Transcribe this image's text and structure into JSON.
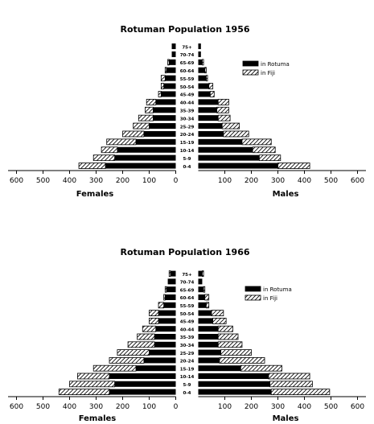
{
  "chart_data": [
    {
      "type": "bar",
      "title": "Rotuman Population 1956",
      "categories": [
        "0-4",
        "5-9",
        "10-14",
        "15-19",
        "20-24",
        "25-29",
        "30-34",
        "35-39",
        "40-44",
        "45-49",
        "50-54",
        "55-59",
        "60-64",
        "65-69",
        "70-74",
        "75+"
      ],
      "xlim": [
        -600,
        600
      ],
      "xticks": [
        600,
        500,
        400,
        300,
        200,
        100,
        0,
        100,
        200,
        300,
        400,
        500,
        600
      ],
      "left_label": "Females",
      "right_label": "Males",
      "series": [
        {
          "name": "in Rotuma",
          "pattern": "solid",
          "females": [
            265,
            230,
            220,
            150,
            120,
            100,
            85,
            85,
            75,
            55,
            45,
            40,
            35,
            25,
            15,
            15
          ],
          "males": [
            300,
            230,
            205,
            165,
            95,
            90,
            75,
            70,
            75,
            45,
            40,
            30,
            25,
            15,
            10,
            10
          ]
        },
        {
          "name": "in Fiji",
          "pattern": "hatched",
          "females": [
            100,
            80,
            60,
            110,
            80,
            60,
            55,
            30,
            35,
            10,
            10,
            15,
            5,
            5,
            0,
            0
          ],
          "males": [
            120,
            80,
            85,
            110,
            95,
            65,
            45,
            45,
            40,
            15,
            15,
            5,
            5,
            5,
            0,
            0
          ]
        }
      ]
    },
    {
      "type": "bar",
      "title": "Rotuman Population 1966",
      "categories": [
        "0-4",
        "5-9",
        "10-14",
        "15-19",
        "20-24",
        "25-29",
        "30-34",
        "35-39",
        "40-44",
        "45-49",
        "50-54",
        "55-59",
        "60-64",
        "65-69",
        "70-74",
        "75+"
      ],
      "xlim": [
        -600,
        600
      ],
      "xticks": [
        600,
        500,
        400,
        300,
        200,
        100,
        0,
        100,
        200,
        300,
        400,
        500,
        600
      ],
      "left_label": "Females",
      "right_label": "Males",
      "series": [
        {
          "name": "in Rotuma",
          "pattern": "solid",
          "females": [
            250,
            230,
            250,
            150,
            120,
            100,
            80,
            80,
            75,
            65,
            65,
            45,
            40,
            35,
            30,
            20
          ],
          "males": [
            275,
            270,
            265,
            160,
            80,
            85,
            75,
            75,
            75,
            55,
            50,
            30,
            25,
            20,
            15,
            15
          ]
        },
        {
          "name": "in Fiji",
          "pattern": "hatched",
          "females": [
            190,
            170,
            120,
            160,
            130,
            120,
            100,
            65,
            50,
            35,
            35,
            20,
            5,
            5,
            0,
            5
          ],
          "males": [
            220,
            160,
            155,
            155,
            170,
            115,
            90,
            75,
            55,
            50,
            45,
            10,
            15,
            5,
            0,
            5
          ]
        }
      ]
    }
  ]
}
